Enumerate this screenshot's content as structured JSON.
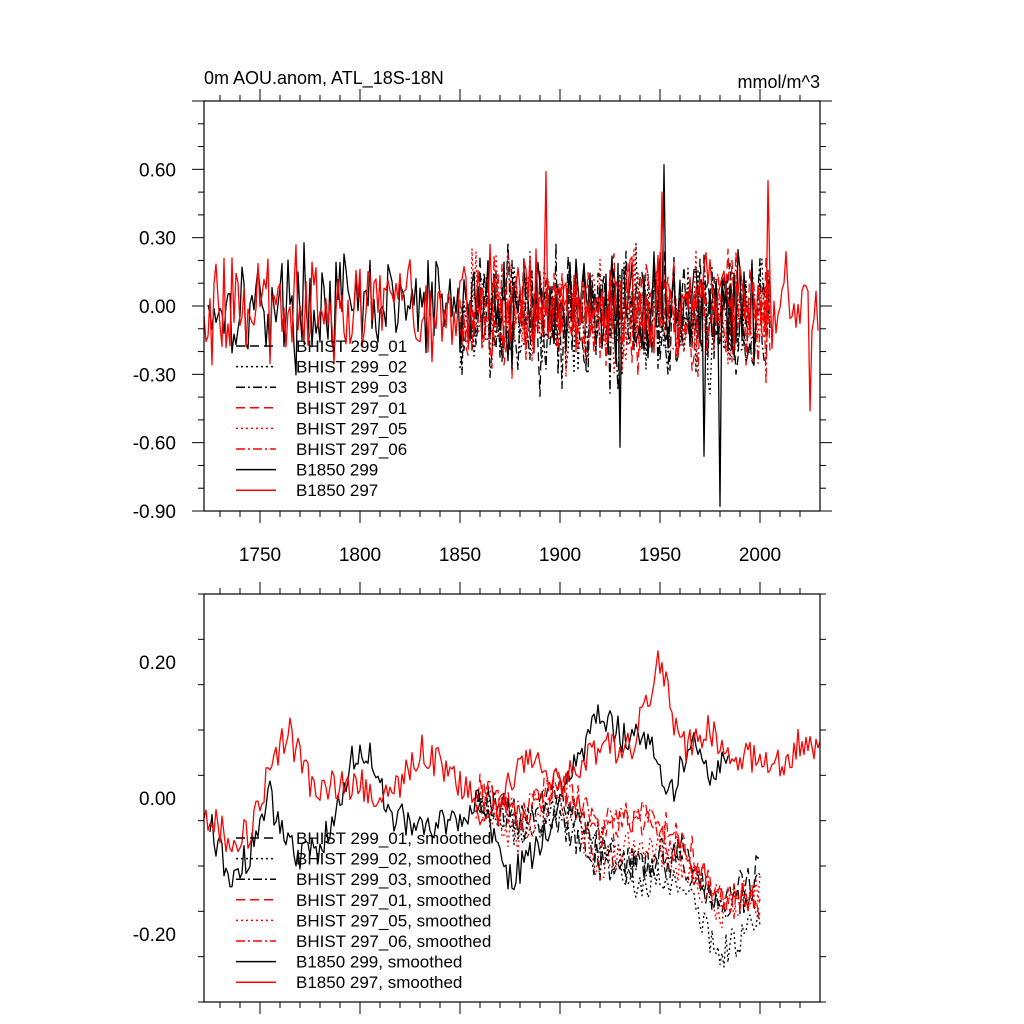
{
  "chart_data": [
    {
      "type": "line",
      "title": "0m AOU.anom, ATL_18S-18N",
      "units": "mmol/m^3",
      "xlim": [
        1722,
        2030
      ],
      "ylim": [
        -0.9,
        0.9
      ],
      "xticks": [
        1750,
        1800,
        1850,
        1900,
        1950,
        2000
      ],
      "yticks": [
        0.6,
        0.3,
        0.0,
        -0.3,
        -0.6,
        -0.9
      ],
      "ytick_labels": [
        "0.60",
        "0.30",
        "0.00",
        "-0.30",
        "-0.60",
        "-0.90"
      ],
      "grid": false,
      "legend_position": "lower-left",
      "series": [
        {
          "name": "BHIST 299_01",
          "color": "#000000",
          "dash": "dash",
          "x_range": [
            1850,
            2005
          ],
          "mean": -0.04,
          "amp": 0.2,
          "seed": 11
        },
        {
          "name": "BHIST 299_02",
          "color": "#000000",
          "dash": "dot",
          "x_range": [
            1850,
            2005
          ],
          "mean": -0.05,
          "amp": 0.2,
          "seed": 12
        },
        {
          "name": "BHIST 299_03",
          "color": "#000000",
          "dash": "dashdot",
          "x_range": [
            1850,
            2005
          ],
          "mean": -0.05,
          "amp": 0.2,
          "seed": 13
        },
        {
          "name": "BHIST 297_01",
          "color": "#ff0000",
          "dash": "dash",
          "x_range": [
            1850,
            2005
          ],
          "mean": -0.03,
          "amp": 0.18,
          "seed": 14
        },
        {
          "name": "BHIST 297_05",
          "color": "#ff0000",
          "dash": "dot",
          "x_range": [
            1850,
            2005
          ],
          "mean": -0.03,
          "amp": 0.18,
          "seed": 15
        },
        {
          "name": "BHIST 297_06",
          "color": "#ff0000",
          "dash": "dashdot",
          "x_range": [
            1850,
            2005
          ],
          "mean": -0.03,
          "amp": 0.18,
          "seed": 16
        },
        {
          "name": "B1850 299",
          "color": "#000000",
          "dash": "solid",
          "x_range": [
            1724,
            2001
          ],
          "mean": 0.0,
          "amp": 0.17,
          "seed": 17,
          "peaks": [
            [
              1952,
              0.62
            ],
            [
              1980,
              -0.88
            ],
            [
              1972,
              -0.66
            ],
            [
              1930,
              -0.62
            ]
          ]
        },
        {
          "name": "B1850 297",
          "color": "#ff0000",
          "dash": "solid",
          "x_range": [
            1722,
            2029
          ],
          "mean": 0.0,
          "amp": 0.17,
          "seed": 18,
          "peaks": [
            [
              1893,
              0.59
            ],
            [
              2004,
              0.55
            ],
            [
              1951,
              0.5
            ],
            [
              2025,
              -0.46
            ]
          ]
        }
      ]
    },
    {
      "type": "line",
      "title": "",
      "units": "",
      "xlim": [
        1722,
        2030
      ],
      "ylim": [
        -0.3,
        0.3
      ],
      "xticks": [
        1750,
        1800,
        1850,
        1900,
        1950,
        2000
      ],
      "yticks": [
        0.2,
        0.0,
        -0.2
      ],
      "ytick_labels": [
        "0.20",
        "0.00",
        "-0.20"
      ],
      "grid": false,
      "legend_position": "lower-left",
      "series": [
        {
          "name": "BHIST 299_01, smoothed",
          "color": "#000000",
          "dash": "dash",
          "x_range": [
            1858,
            2000
          ],
          "knots": [
            [
              1858,
              0.0
            ],
            [
              1880,
              -0.02
            ],
            [
              1900,
              0.01
            ],
            [
              1920,
              -0.08
            ],
            [
              1940,
              -0.1
            ],
            [
              1960,
              -0.09
            ],
            [
              1980,
              -0.16
            ],
            [
              2000,
              -0.1
            ]
          ]
        },
        {
          "name": "BHIST 299_02, smoothed",
          "color": "#000000",
          "dash": "dot",
          "x_range": [
            1858,
            2000
          ],
          "knots": [
            [
              1858,
              -0.01
            ],
            [
              1880,
              -0.05
            ],
            [
              1900,
              -0.02
            ],
            [
              1920,
              -0.06
            ],
            [
              1940,
              -0.13
            ],
            [
              1960,
              -0.12
            ],
            [
              1980,
              -0.23
            ],
            [
              2000,
              -0.18
            ]
          ]
        },
        {
          "name": "BHIST 299_03, smoothed",
          "color": "#000000",
          "dash": "dashdot",
          "x_range": [
            1858,
            2000
          ],
          "knots": [
            [
              1858,
              0.01
            ],
            [
              1880,
              -0.04
            ],
            [
              1900,
              -0.03
            ],
            [
              1920,
              -0.1
            ],
            [
              1940,
              -0.1
            ],
            [
              1960,
              -0.07
            ],
            [
              1980,
              -0.17
            ],
            [
              2000,
              -0.13
            ]
          ]
        },
        {
          "name": "BHIST 297_01, smoothed",
          "color": "#ff0000",
          "dash": "dash",
          "x_range": [
            1858,
            2000
          ],
          "knots": [
            [
              1858,
              0.02
            ],
            [
              1880,
              -0.03
            ],
            [
              1900,
              0.02
            ],
            [
              1920,
              -0.05
            ],
            [
              1940,
              -0.03
            ],
            [
              1960,
              -0.05
            ],
            [
              1980,
              -0.15
            ],
            [
              2000,
              -0.14
            ]
          ]
        },
        {
          "name": "BHIST 297_05, smoothed",
          "color": "#ff0000",
          "dash": "dot",
          "x_range": [
            1858,
            2000
          ],
          "knots": [
            [
              1858,
              -0.02
            ],
            [
              1880,
              -0.06
            ],
            [
              1900,
              0.0
            ],
            [
              1920,
              -0.1
            ],
            [
              1940,
              -0.06
            ],
            [
              1960,
              -0.1
            ],
            [
              1980,
              -0.17
            ],
            [
              2000,
              -0.13
            ]
          ]
        },
        {
          "name": "BHIST 297_06, smoothed",
          "color": "#ff0000",
          "dash": "dashdot",
          "x_range": [
            1858,
            2000
          ],
          "knots": [
            [
              1858,
              0.01
            ],
            [
              1880,
              -0.03
            ],
            [
              1900,
              0.03
            ],
            [
              1920,
              -0.04
            ],
            [
              1940,
              -0.02
            ],
            [
              1960,
              -0.08
            ],
            [
              1980,
              -0.15
            ],
            [
              2000,
              -0.16
            ]
          ]
        },
        {
          "name": "B1850 299, smoothed",
          "color": "#000000",
          "dash": "solid",
          "x_range": [
            1725,
            1985
          ],
          "knots": [
            [
              1725,
              -0.04
            ],
            [
              1735,
              -0.12
            ],
            [
              1745,
              -0.08
            ],
            [
              1755,
              0.0
            ],
            [
              1765,
              -0.08
            ],
            [
              1780,
              -0.08
            ],
            [
              1795,
              0.05
            ],
            [
              1805,
              0.07
            ],
            [
              1815,
              -0.02
            ],
            [
              1830,
              -0.05
            ],
            [
              1845,
              -0.03
            ],
            [
              1860,
              -0.01
            ],
            [
              1875,
              -0.12
            ],
            [
              1890,
              -0.07
            ],
            [
              1905,
              0.04
            ],
            [
              1920,
              0.12
            ],
            [
              1935,
              0.08
            ],
            [
              1945,
              0.1
            ],
            [
              1955,
              0.0
            ],
            [
              1965,
              0.09
            ],
            [
              1975,
              0.03
            ],
            [
              1985,
              0.08
            ]
          ]
        },
        {
          "name": "B1850 297, smoothed",
          "color": "#ff0000",
          "dash": "solid",
          "x_range": [
            1722,
            2030
          ],
          "knots": [
            [
              1722,
              -0.02
            ],
            [
              1735,
              -0.06
            ],
            [
              1745,
              -0.05
            ],
            [
              1755,
              0.04
            ],
            [
              1764,
              0.1
            ],
            [
              1775,
              0.02
            ],
            [
              1790,
              0.02
            ],
            [
              1800,
              0.02
            ],
            [
              1815,
              0.0
            ],
            [
              1830,
              0.07
            ],
            [
              1845,
              0.04
            ],
            [
              1860,
              -0.02
            ],
            [
              1870,
              -0.02
            ],
            [
              1880,
              0.06
            ],
            [
              1900,
              0.02
            ],
            [
              1920,
              0.08
            ],
            [
              1935,
              0.07
            ],
            [
              1950,
              0.2
            ],
            [
              1960,
              0.07
            ],
            [
              1975,
              0.1
            ],
            [
              1990,
              0.06
            ],
            [
              2010,
              0.05
            ],
            [
              2020,
              0.08
            ],
            [
              2030,
              0.08
            ]
          ]
        }
      ]
    }
  ]
}
